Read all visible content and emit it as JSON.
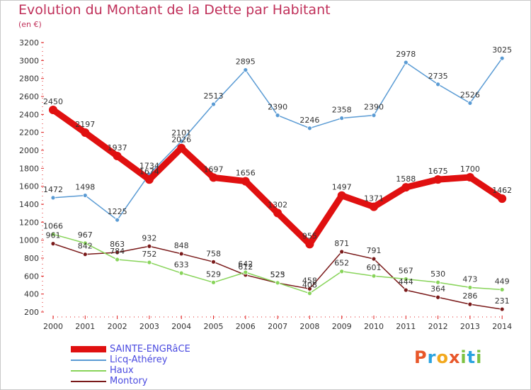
{
  "header": {
    "title": "Evolution du Montant de la Dette par Habitant",
    "subtitle": "(en €)"
  },
  "brand": {
    "letters": [
      {
        "ch": "P",
        "color": "#e8572a"
      },
      {
        "ch": "r",
        "color": "#2aa3e0"
      },
      {
        "ch": "o",
        "color": "#f2a81d"
      },
      {
        "ch": "x",
        "color": "#e8572a"
      },
      {
        "ch": "i",
        "color": "#7cc242"
      },
      {
        "ch": "t",
        "color": "#2aa3e0"
      },
      {
        "ch": "i",
        "color": "#7cc242"
      }
    ]
  },
  "chart_data": {
    "type": "line",
    "title": "Evolution du Montant de la Dette par Habitant",
    "subtitle": "(en €)",
    "x": [
      "2000",
      "2001",
      "2002",
      "2003",
      "2004",
      "2005",
      "2006",
      "2007",
      "2008",
      "2009",
      "2010",
      "2011",
      "2012",
      "2013",
      "2014"
    ],
    "ylim": [
      200,
      3200
    ],
    "yticks": [
      200,
      400,
      600,
      800,
      1000,
      1200,
      1400,
      1600,
      1800,
      2000,
      2200,
      2400,
      2600,
      2800,
      3000,
      3200
    ],
    "grid": false,
    "legend": "bottom-left",
    "series": [
      {
        "name": "SAINTE-ENGRâCE",
        "color": "#e01010",
        "values": [
          2450,
          2197,
          1937,
          1674,
          2026,
          1697,
          1656,
          1302,
          955,
          1497,
          1371,
          1588,
          1675,
          1700,
          1462
        ]
      },
      {
        "name": "Licq-Athérey",
        "color": "#5a9bd4",
        "values": [
          1472,
          1498,
          1225,
          1734,
          2101,
          2513,
          2895,
          2390,
          2246,
          2358,
          2390,
          2978,
          2735,
          2526,
          3025
        ]
      },
      {
        "name": "Haux",
        "color": "#88d45a",
        "values": [
          1066,
          967,
          784,
          752,
          633,
          529,
          642,
          525,
          408,
          652,
          601,
          567,
          530,
          473,
          449
        ]
      },
      {
        "name": "Montory",
        "color": "#7a1a1a",
        "values": [
          961,
          842,
          863,
          932,
          848,
          758,
          612,
          523,
          458,
          871,
          791,
          444,
          364,
          286,
          231
        ]
      }
    ]
  }
}
